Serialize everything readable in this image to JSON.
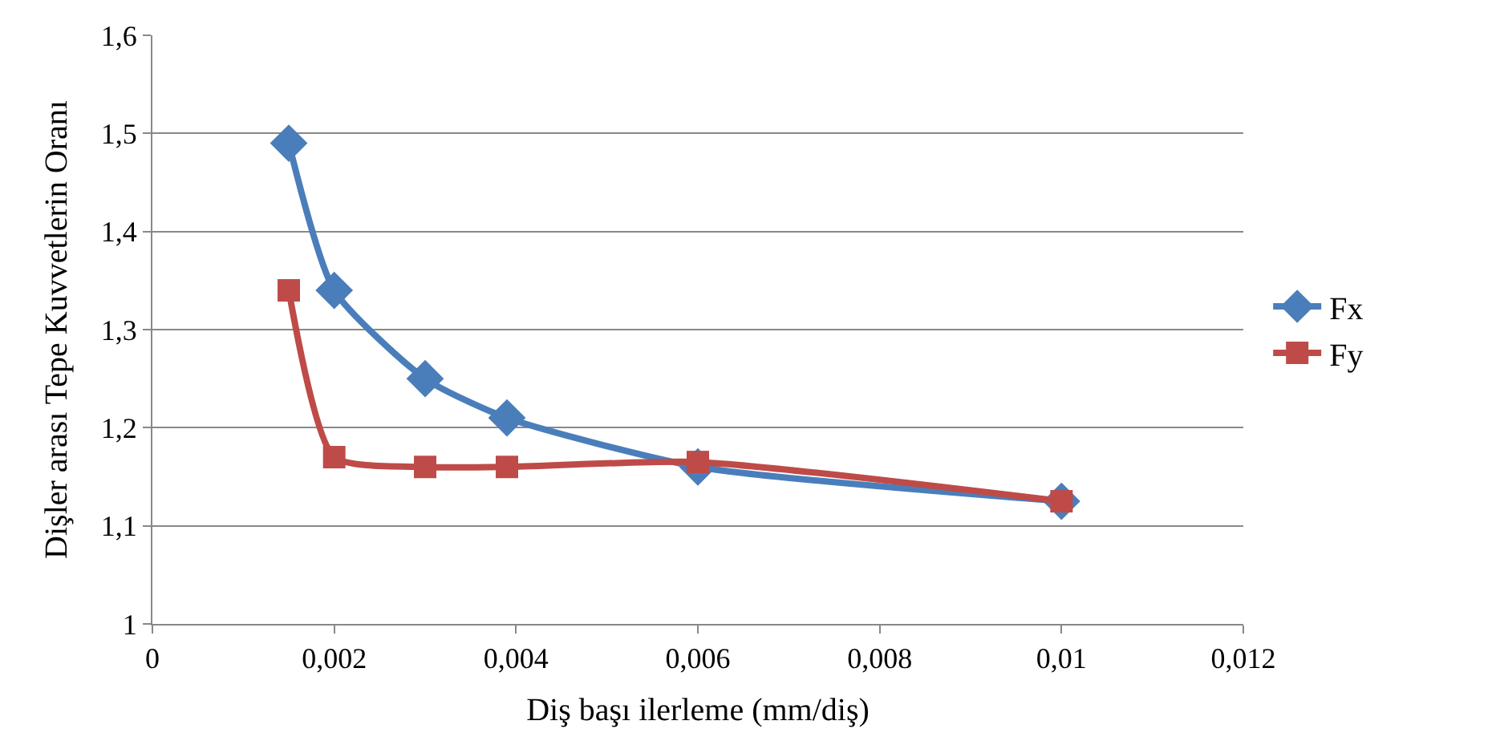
{
  "chart_data": {
    "type": "line",
    "xlabel": "Diş başı ilerleme (mm/diş)",
    "ylabel": "Dişler arası Tepe Kuvvetlerin Oranı",
    "x": [
      0.0015,
      0.002,
      0.003,
      0.0039,
      0.006,
      0.01
    ],
    "series": [
      {
        "name": "Fx",
        "color": "#4a7ebb",
        "marker": "diamond",
        "values": [
          1.49,
          1.34,
          1.25,
          1.21,
          1.16,
          1.125
        ]
      },
      {
        "name": "Fy",
        "color": "#be4b48",
        "marker": "square",
        "values": [
          1.34,
          1.17,
          1.16,
          1.16,
          1.165,
          1.125
        ]
      }
    ],
    "xlim": [
      0,
      0.012
    ],
    "xticks": [
      0,
      {
        "value": 0.002,
        "label": "0,002"
      },
      {
        "value": 0.004,
        "label": "0,004"
      },
      {
        "value": 0.006,
        "label": "0,006"
      },
      {
        "value": 0.008,
        "label": "0,008"
      },
      {
        "value": 0.01,
        "label": "0,01"
      },
      {
        "value": 0.012,
        "label": "0,012"
      }
    ],
    "ylim": [
      1,
      1.6
    ],
    "yticks": [
      1,
      {
        "value": 1.1,
        "label": "1,1"
      },
      {
        "value": 1.2,
        "label": "1,2"
      },
      {
        "value": 1.3,
        "label": "1,3"
      },
      {
        "value": 1.4,
        "label": "1,4"
      },
      {
        "value": 1.5,
        "label": "1,5"
      },
      {
        "value": 1.6,
        "label": "1,6"
      }
    ],
    "grid": "y",
    "legend": "right",
    "line_style": "solid"
  }
}
